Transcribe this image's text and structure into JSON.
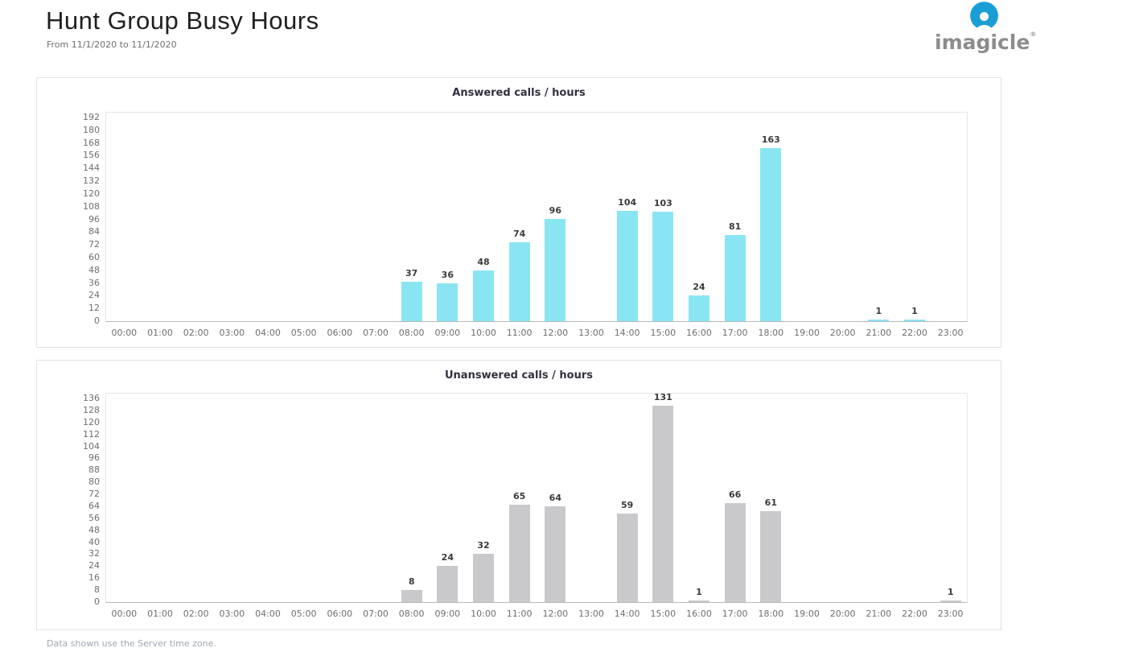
{
  "page": {
    "title": "Hunt Group Busy Hours",
    "subtitle": "From 11/1/2020 to 11/1/2020",
    "footer": "Data shown use the Server time zone.",
    "logo_text": "imagicle",
    "logo_reg": "®"
  },
  "colors": {
    "answered_bar": "#8AE5F3",
    "unanswered_bar": "#C9C9CC",
    "logo_blue": "#1B9ED6",
    "logo_gray": "#8C8C8C",
    "chart_title": "#31313F",
    "axis_label": "#6E6E6E"
  },
  "chart_data": [
    {
      "type": "bar",
      "title": "Answered calls / hours",
      "categories": [
        "00:00",
        "01:00",
        "02:00",
        "03:00",
        "04:00",
        "05:00",
        "06:00",
        "07:00",
        "08:00",
        "09:00",
        "10:00",
        "11:00",
        "12:00",
        "13:00",
        "14:00",
        "15:00",
        "16:00",
        "17:00",
        "18:00",
        "19:00",
        "20:00",
        "21:00",
        "22:00",
        "23:00"
      ],
      "values": [
        0,
        0,
        0,
        0,
        0,
        0,
        0,
        0,
        37,
        36,
        48,
        74,
        96,
        0,
        104,
        103,
        24,
        81,
        163,
        0,
        0,
        1,
        1,
        0
      ],
      "xlabel": "",
      "ylabel": "",
      "ylim": [
        0,
        192
      ],
      "ytick_step": 12,
      "grid": false,
      "legend": "none",
      "bar_color": "#8AE5F3"
    },
    {
      "type": "bar",
      "title": "Unanswered calls / hours",
      "categories": [
        "00:00",
        "01:00",
        "02:00",
        "03:00",
        "04:00",
        "05:00",
        "06:00",
        "07:00",
        "08:00",
        "09:00",
        "10:00",
        "11:00",
        "12:00",
        "13:00",
        "14:00",
        "15:00",
        "16:00",
        "17:00",
        "18:00",
        "19:00",
        "20:00",
        "21:00",
        "22:00",
        "23:00"
      ],
      "values": [
        0,
        0,
        0,
        0,
        0,
        0,
        0,
        0,
        8,
        24,
        32,
        65,
        64,
        0,
        59,
        131,
        1,
        66,
        61,
        0,
        0,
        0,
        0,
        1
      ],
      "xlabel": "",
      "ylabel": "",
      "ylim": [
        0,
        136
      ],
      "ytick_step": 8,
      "grid": false,
      "legend": "none",
      "bar_color": "#C9C9CC"
    }
  ]
}
